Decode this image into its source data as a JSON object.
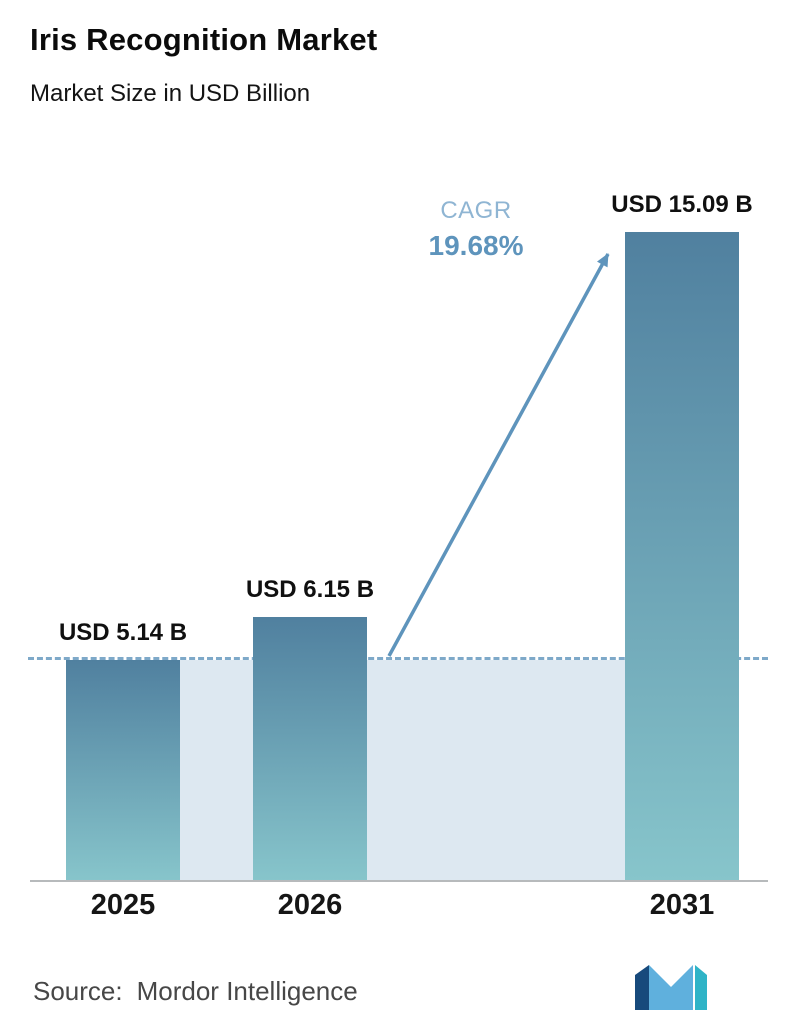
{
  "header": {
    "title": "Iris Recognition Market",
    "subtitle": "Market Size in USD Billion"
  },
  "chart_data": {
    "type": "bar",
    "categories": [
      "2025",
      "2026",
      "2031"
    ],
    "values": [
      5.14,
      6.15,
      15.09
    ],
    "value_labels": [
      "USD 5.14 B",
      "USD 6.15 B",
      "USD 15.09 B"
    ],
    "unit": "USD Billion",
    "title": "Iris Recognition Market",
    "subtitle": "Market Size in USD Billion",
    "ylim": [
      0,
      15.09
    ],
    "grid": false,
    "legend": false,
    "reference_line_value": 5.14,
    "annotation": {
      "label": "CAGR",
      "value": "19.68%"
    }
  },
  "annotation": {
    "cagr_label": "CAGR",
    "cagr_value": "19.68%"
  },
  "footer": {
    "source_label": "Source:",
    "source_name": "Mordor Intelligence"
  },
  "icons": {
    "logo": "mordor-intelligence-logo"
  },
  "colors": {
    "accent": "#5e94bc",
    "cagr_label": "#8fb5d3",
    "bar_top": "#50809f",
    "bar_bottom": "#87c5cb",
    "band": "#dde8f1",
    "axis": "#b7babc",
    "source_text": "#474747"
  }
}
